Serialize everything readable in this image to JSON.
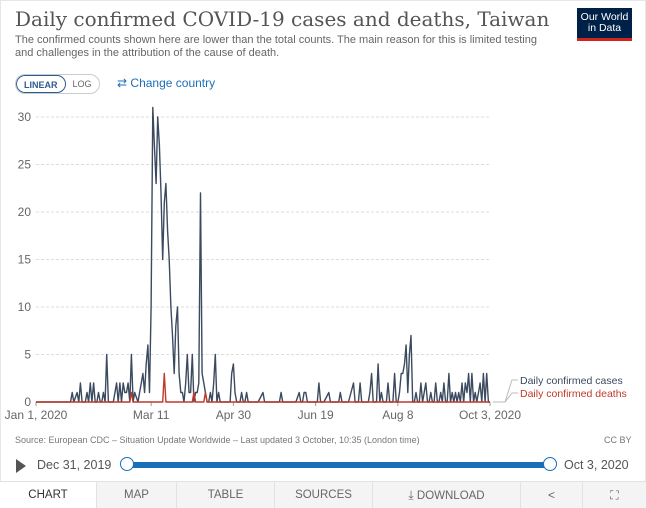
{
  "header": {
    "title": "Daily confirmed COVID-19 cases and deaths, Taiwan",
    "subtitle": "The confirmed counts shown here are lower than the total counts. The main reason for this is limited testing and challenges in the attribution of the cause of death.",
    "logo_line1": "Our World",
    "logo_line2": "in Data"
  },
  "controls": {
    "linear_label": "LINEAR",
    "log_label": "LOG",
    "change_country_label": "Change country"
  },
  "chart_data": {
    "type": "line",
    "title": "Daily confirmed COVID-19 cases and deaths, Taiwan",
    "xlabel": "",
    "ylabel": "",
    "x_start": "2020-01-01",
    "x_end": "2020-10-03",
    "ylim": [
      0,
      30
    ],
    "yticks": [
      0,
      5,
      10,
      15,
      20,
      25,
      30
    ],
    "xtick_labels": [
      "Jan 1, 2020",
      "Mar 11",
      "Apr 30",
      "Jun 19",
      "Aug 8",
      "Oct 3, 2020"
    ],
    "xtick_days": [
      0,
      70,
      120,
      170,
      220,
      276
    ],
    "grid": "horizontal dashed",
    "series": [
      {
        "name": "Daily confirmed cases",
        "color": "#3b4a5e",
        "points": [
          [
            0,
            0
          ],
          [
            21,
            0
          ],
          [
            22,
            1
          ],
          [
            23,
            0
          ],
          [
            25,
            1
          ],
          [
            26,
            0
          ],
          [
            27,
            2
          ],
          [
            28,
            0
          ],
          [
            30,
            0
          ],
          [
            31,
            1
          ],
          [
            32,
            0
          ],
          [
            33,
            2
          ],
          [
            34,
            0
          ],
          [
            35,
            2
          ],
          [
            36,
            0
          ],
          [
            37,
            0
          ],
          [
            38,
            1
          ],
          [
            39,
            0
          ],
          [
            40,
            0
          ],
          [
            41,
            1
          ],
          [
            42,
            0
          ],
          [
            43,
            5
          ],
          [
            44,
            0
          ],
          [
            46,
            0
          ],
          [
            47,
            0
          ],
          [
            49,
            2
          ],
          [
            50,
            0
          ],
          [
            51,
            2
          ],
          [
            52,
            0
          ],
          [
            53,
            2
          ],
          [
            54,
            1
          ],
          [
            55,
            1
          ],
          [
            56,
            2
          ],
          [
            57,
            0
          ],
          [
            58,
            5
          ],
          [
            59,
            0
          ],
          [
            60,
            1
          ],
          [
            62,
            0
          ],
          [
            63,
            1
          ],
          [
            64,
            2
          ],
          [
            65,
            3
          ],
          [
            66,
            1
          ],
          [
            67,
            4
          ],
          [
            68,
            6
          ],
          [
            69,
            1
          ],
          [
            70,
            10
          ],
          [
            71,
            31
          ],
          [
            72,
            27
          ],
          [
            73,
            23
          ],
          [
            74,
            30
          ],
          [
            75,
            27
          ],
          [
            76,
            22
          ],
          [
            77,
            15
          ],
          [
            78,
            21
          ],
          [
            79,
            23
          ],
          [
            80,
            18
          ],
          [
            81,
            15
          ],
          [
            82,
            10
          ],
          [
            83,
            7
          ],
          [
            84,
            3
          ],
          [
            85,
            8
          ],
          [
            86,
            10
          ],
          [
            87,
            3
          ],
          [
            88,
            1
          ],
          [
            89,
            1
          ],
          [
            90,
            0
          ],
          [
            91,
            2
          ],
          [
            92,
            5
          ],
          [
            93,
            1
          ],
          [
            94,
            1
          ],
          [
            95,
            5
          ],
          [
            96,
            0
          ],
          [
            97,
            1
          ],
          [
            98,
            1
          ],
          [
            99,
            2
          ],
          [
            100,
            22
          ],
          [
            101,
            3
          ],
          [
            102,
            2
          ],
          [
            103,
            1
          ],
          [
            104,
            0
          ],
          [
            105,
            0
          ],
          [
            106,
            1
          ],
          [
            107,
            0
          ],
          [
            108,
            2
          ],
          [
            109,
            5
          ],
          [
            110,
            0
          ],
          [
            111,
            1
          ],
          [
            112,
            0
          ],
          [
            113,
            0
          ],
          [
            114,
            0
          ],
          [
            115,
            0
          ],
          [
            118,
            0
          ],
          [
            119,
            3
          ],
          [
            120,
            4
          ],
          [
            121,
            1
          ],
          [
            122,
            0
          ],
          [
            123,
            0
          ],
          [
            124,
            0
          ],
          [
            125,
            1
          ],
          [
            126,
            0
          ],
          [
            127,
            0
          ],
          [
            128,
            1
          ],
          [
            129,
            0
          ],
          [
            130,
            0
          ],
          [
            131,
            0
          ],
          [
            135,
            0
          ],
          [
            138,
            1
          ],
          [
            139,
            0
          ],
          [
            143,
            0
          ],
          [
            148,
            0
          ],
          [
            149,
            1
          ],
          [
            150,
            0
          ],
          [
            155,
            0
          ],
          [
            158,
            0
          ],
          [
            160,
            1
          ],
          [
            161,
            0
          ],
          [
            162,
            0
          ],
          [
            163,
            1
          ],
          [
            164,
            1
          ],
          [
            165,
            0
          ],
          [
            168,
            0
          ],
          [
            171,
            0
          ],
          [
            172,
            2
          ],
          [
            173,
            0
          ],
          [
            175,
            0
          ],
          [
            178,
            1
          ],
          [
            179,
            0
          ],
          [
            184,
            0
          ],
          [
            185,
            1
          ],
          [
            186,
            0
          ],
          [
            190,
            0
          ],
          [
            193,
            2
          ],
          [
            194,
            0
          ],
          [
            196,
            0
          ],
          [
            197,
            2
          ],
          [
            198,
            0
          ],
          [
            202,
            0
          ],
          [
            203,
            1
          ],
          [
            204,
            3
          ],
          [
            205,
            0
          ],
          [
            207,
            0
          ],
          [
            208,
            4
          ],
          [
            209,
            0
          ],
          [
            210,
            1
          ],
          [
            211,
            0
          ],
          [
            213,
            0
          ],
          [
            214,
            2
          ],
          [
            215,
            0
          ],
          [
            217,
            0
          ],
          [
            218,
            3
          ],
          [
            219,
            0
          ],
          [
            220,
            0
          ],
          [
            221,
            1
          ],
          [
            222,
            3
          ],
          [
            223,
            3
          ],
          [
            224,
            4
          ],
          [
            225,
            6
          ],
          [
            226,
            1
          ],
          [
            227,
            5
          ],
          [
            228,
            7
          ],
          [
            229,
            0
          ],
          [
            230,
            0
          ],
          [
            231,
            1
          ],
          [
            232,
            0
          ],
          [
            233,
            0
          ],
          [
            234,
            2
          ],
          [
            235,
            0
          ],
          [
            236,
            1
          ],
          [
            237,
            2
          ],
          [
            238,
            0
          ],
          [
            239,
            0
          ],
          [
            240,
            1
          ],
          [
            241,
            0
          ],
          [
            242,
            0
          ],
          [
            243,
            2
          ],
          [
            244,
            0
          ],
          [
            245,
            0
          ],
          [
            246,
            1
          ],
          [
            247,
            0
          ],
          [
            248,
            2
          ],
          [
            249,
            0
          ],
          [
            250,
            0
          ],
          [
            251,
            3
          ],
          [
            252,
            0
          ],
          [
            253,
            1
          ],
          [
            254,
            0
          ],
          [
            255,
            1
          ],
          [
            256,
            0
          ],
          [
            257,
            1
          ],
          [
            258,
            0
          ],
          [
            259,
            2
          ],
          [
            260,
            0
          ],
          [
            261,
            2
          ],
          [
            262,
            1
          ],
          [
            263,
            3
          ],
          [
            264,
            0
          ],
          [
            265,
            3
          ],
          [
            266,
            0
          ],
          [
            267,
            1
          ],
          [
            268,
            0
          ],
          [
            269,
            1
          ],
          [
            270,
            2
          ],
          [
            271,
            0
          ],
          [
            272,
            3
          ],
          [
            273,
            0
          ],
          [
            274,
            3
          ],
          [
            275,
            0
          ],
          [
            276,
            0
          ]
        ]
      },
      {
        "name": "Daily confirmed deaths",
        "color": "#c0392b",
        "points": [
          [
            0,
            0
          ],
          [
            57,
            0
          ],
          [
            58,
            1
          ],
          [
            59,
            0
          ],
          [
            60,
            0
          ],
          [
            77,
            0
          ],
          [
            78,
            3
          ],
          [
            79,
            0
          ],
          [
            80,
            0
          ],
          [
            95,
            0
          ],
          [
            96,
            1
          ],
          [
            97,
            0
          ],
          [
            98,
            0
          ],
          [
            102,
            0
          ],
          [
            103,
            1
          ],
          [
            104,
            0
          ],
          [
            105,
            0
          ],
          [
            276,
            0
          ]
        ]
      }
    ]
  },
  "footer": {
    "source": "Source: European CDC – Situation Update Worldwide – Last updated 3 October, 10:35 (London time)",
    "license": "CC BY"
  },
  "timeline": {
    "start_label": "Dec 31, 2019",
    "end_label": "Oct 3, 2020",
    "start_fraction": 0.0,
    "end_fraction": 1.0
  },
  "tabs": {
    "chart": "CHART",
    "map": "MAP",
    "table": "TABLE",
    "sources": "SOURCES",
    "download": "DOWNLOAD"
  },
  "icons": {
    "change_country": "swap-arrows-icon",
    "download": "download-icon",
    "share": "share-icon",
    "fullscreen": "expand-icon"
  }
}
